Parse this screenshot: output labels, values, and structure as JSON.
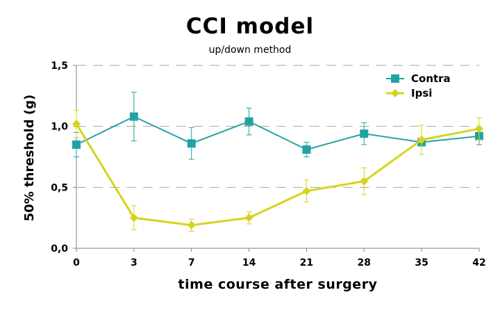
{
  "chart_data": {
    "type": "line",
    "title": "CCI model",
    "subtitle": "up/down method",
    "xlabel": "time course after surgery",
    "ylabel": "50% threshold (g)",
    "categories": [
      "0",
      "3",
      "7",
      "14",
      "21",
      "28",
      "35",
      "42"
    ],
    "ylim": [
      0,
      1.5
    ],
    "yticks": [
      0,
      0.5,
      1.0,
      1.5
    ],
    "ytick_labels": [
      "0,0",
      "0,5",
      "1,0",
      "1,5"
    ],
    "grid": "horizontal dashed",
    "legend_position": "top-right",
    "series": [
      {
        "name": "Contra",
        "color": "#22a3a3",
        "marker": "square",
        "values": [
          0.85,
          1.08,
          0.86,
          1.04,
          0.81,
          0.94,
          0.87,
          0.92
        ],
        "error": [
          0.1,
          0.2,
          0.13,
          0.11,
          0.06,
          0.09,
          0.03,
          0.07
        ]
      },
      {
        "name": "Ipsi",
        "color": "#d4d41c",
        "marker": "diamond",
        "values": [
          1.02,
          0.25,
          0.19,
          0.25,
          0.47,
          0.55,
          0.89,
          0.98
        ],
        "error": [
          0.11,
          0.1,
          0.05,
          0.05,
          0.09,
          0.11,
          0.12,
          0.09
        ]
      }
    ]
  }
}
